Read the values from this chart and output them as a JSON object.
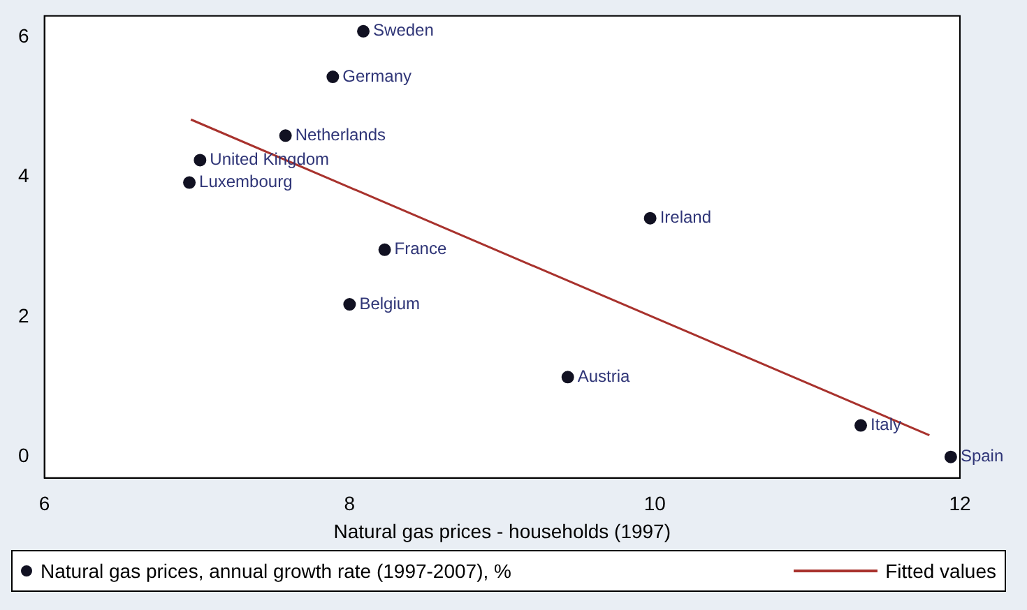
{
  "chart_data": {
    "type": "scatter",
    "xlabel": "Natural gas prices - households (1997)",
    "xlim": [
      6,
      12
    ],
    "xticks": [
      6,
      8,
      10,
      12
    ],
    "ylim": [
      -0.3,
      6.3
    ],
    "yticks": [
      0,
      2,
      4,
      6
    ],
    "grid": false,
    "legend": "bottom",
    "marker": "circle",
    "series": [
      {
        "name": "Natural gas prices, annual growth rate (1997-2007), %",
        "type": "scatter",
        "color": "#111122",
        "x": [
          8.09,
          7.89,
          7.58,
          7.02,
          6.95,
          9.97,
          8.23,
          8.0,
          9.43,
          11.35,
          11.94
        ],
        "values": [
          6.08,
          5.43,
          4.59,
          4.24,
          3.92,
          3.41,
          2.96,
          2.18,
          1.14,
          0.45,
          0.0
        ]
      },
      {
        "name": "Fitted values",
        "type": "line",
        "color": "#a8322d",
        "x": [
          6.96,
          11.8
        ],
        "values": [
          4.82,
          0.31
        ],
        "marker": "none"
      }
    ],
    "annotations": [
      {
        "text": "Sweden",
        "x": 8.09,
        "y": 6.08
      },
      {
        "text": "Germany",
        "x": 7.89,
        "y": 5.43
      },
      {
        "text": "Netherlands",
        "x": 7.58,
        "y": 4.59
      },
      {
        "text": "United Kingdom",
        "x": 7.02,
        "y": 4.24
      },
      {
        "text": "Luxembourg",
        "x": 6.95,
        "y": 3.92
      },
      {
        "text": "Ireland",
        "x": 9.97,
        "y": 3.41
      },
      {
        "text": "France",
        "x": 8.23,
        "y": 2.96
      },
      {
        "text": "Belgium",
        "x": 8.0,
        "y": 2.18
      },
      {
        "text": "Austria",
        "x": 9.43,
        "y": 1.14
      },
      {
        "text": "Italy",
        "x": 11.35,
        "y": 0.45
      },
      {
        "text": "Spain",
        "x": 11.94,
        "y": 0.0
      }
    ]
  }
}
